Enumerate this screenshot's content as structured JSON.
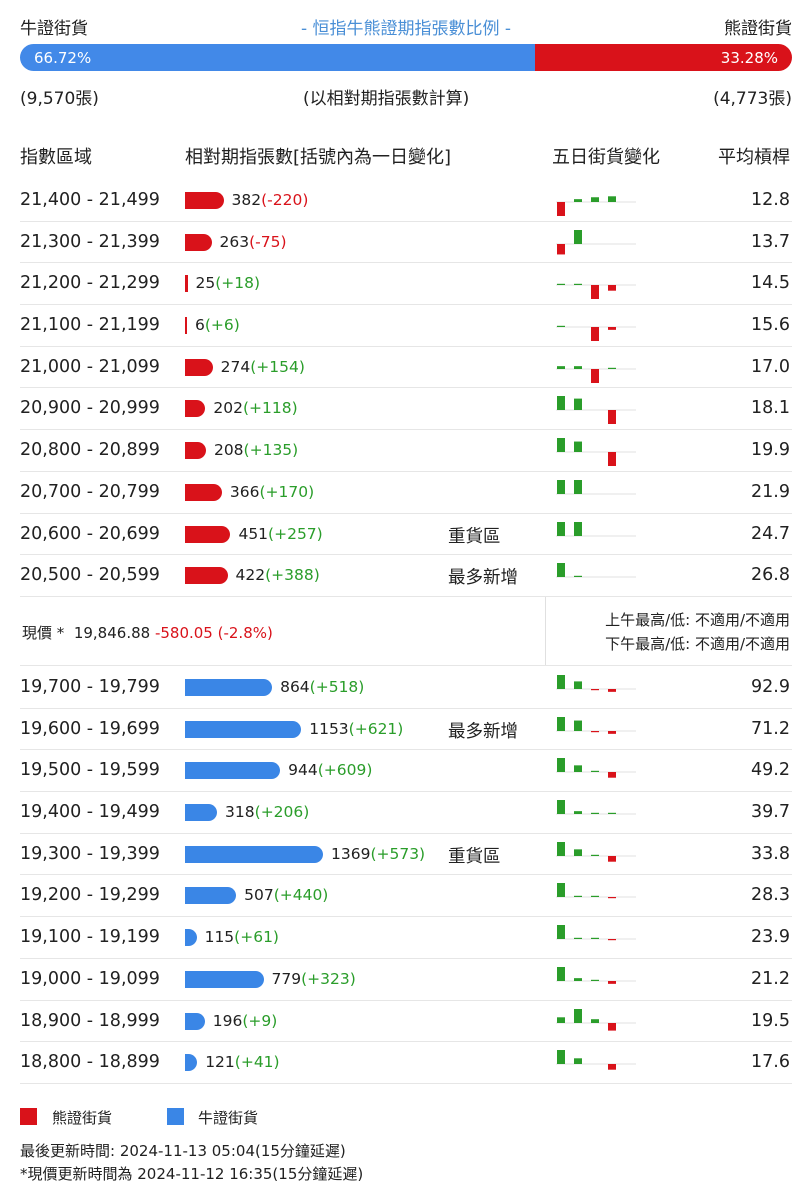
{
  "header": {
    "left_title": "牛證街貨",
    "center_title": "- 恒指牛熊證期指張數比例 -",
    "right_title": "熊證街貨"
  },
  "ratio": {
    "bull_pct_label": "66.72%",
    "bear_pct_label": "33.28%",
    "bull_fraction": 0.6672,
    "bull_color": "#4289e8",
    "bear_color": "#d9121a"
  },
  "counts": {
    "bull": "(9,570張)",
    "note": "(以相對期指張數計算)",
    "bear": "(4,773張)"
  },
  "columns": {
    "range": "指數區域",
    "contracts": "相對期指張數[括號內為一日變化]",
    "five_day": "五日街貨變化",
    "avg_ratio": "平均槓桿"
  },
  "bear_rows": [
    {
      "range": "21,400 - 21,499",
      "value": "382",
      "change": "(-220)",
      "sign": "neg",
      "tag": "",
      "avg": "12.8",
      "spark": [
        -2,
        0.3,
        0.5,
        0.6,
        0
      ]
    },
    {
      "range": "21,300 - 21,399",
      "value": "263",
      "change": "(-75)",
      "sign": "neg",
      "tag": "",
      "avg": "13.7",
      "spark": [
        -1.1,
        1.9,
        0,
        0,
        0
      ]
    },
    {
      "range": "21,200 - 21,299",
      "value": "25",
      "change": "(+18)",
      "sign": "pos",
      "tag": "",
      "avg": "14.5",
      "spark": [
        0.1,
        0.1,
        -1.9,
        -0.6,
        0
      ]
    },
    {
      "range": "21,100 - 21,199",
      "value": "6",
      "change": "(+6)",
      "sign": "pos",
      "tag": "",
      "avg": "15.6",
      "spark": [
        0.1,
        0,
        -1.8,
        -0.3,
        0
      ]
    },
    {
      "range": "21,000 - 21,099",
      "value": "274",
      "change": "(+154)",
      "sign": "pos",
      "tag": "",
      "avg": "17.0",
      "spark": [
        0.3,
        0.3,
        -1.8,
        0.1,
        0
      ]
    },
    {
      "range": "20,900 - 20,999",
      "value": "202",
      "change": "(+118)",
      "sign": "pos",
      "tag": "",
      "avg": "18.1",
      "spark": [
        1.9,
        1.2,
        0,
        -1.8,
        0
      ]
    },
    {
      "range": "20,800 - 20,899",
      "value": "208",
      "change": "(+135)",
      "sign": "pos",
      "tag": "",
      "avg": "19.9",
      "spark": [
        1.8,
        1.1,
        0,
        -1.8,
        0
      ]
    },
    {
      "range": "20,700 - 20,799",
      "value": "366",
      "change": "(+170)",
      "sign": "pos",
      "tag": "",
      "avg": "21.9",
      "spark": [
        2,
        2,
        0,
        0,
        0
      ]
    },
    {
      "range": "20,600 - 20,699",
      "value": "451",
      "change": "(+257)",
      "sign": "pos",
      "tag": "重貨區",
      "avg": "24.7",
      "spark": [
        1.9,
        1.6,
        0,
        0,
        0
      ]
    },
    {
      "range": "20,500 - 20,599",
      "value": "422",
      "change": "(+388)",
      "sign": "pos",
      "tag": "最多新增",
      "avg": "26.8",
      "spark": [
        2,
        0.1,
        0,
        0,
        0
      ]
    }
  ],
  "price": {
    "label": "現價 *",
    "value": "19,846.88",
    "change": "-580.05 (-2.8%)",
    "am": "上午最高/低: 不適用/不適用",
    "pm": "下午最高/低: 不適用/不適用"
  },
  "bull_rows": [
    {
      "range": "19,700 - 19,799",
      "value": "864",
      "change": "(+518)",
      "sign": "pos",
      "tag": "",
      "avg": "92.9",
      "spark": [
        2,
        0.8,
        -0.1,
        -0.3,
        0
      ]
    },
    {
      "range": "19,600 - 19,699",
      "value": "1153",
      "change": "(+621)",
      "sign": "pos",
      "tag": "最多新增",
      "avg": "71.2",
      "spark": [
        2,
        1.1,
        -0.1,
        -0.3,
        0
      ]
    },
    {
      "range": "19,500 - 19,599",
      "value": "944",
      "change": "(+609)",
      "sign": "pos",
      "tag": "",
      "avg": "49.2",
      "spark": [
        2,
        0.7,
        0.1,
        -0.6,
        0
      ]
    },
    {
      "range": "19,400 - 19,499",
      "value": "318",
      "change": "(+206)",
      "sign": "pos",
      "tag": "",
      "avg": "39.7",
      "spark": [
        2,
        0.3,
        0.1,
        0.1,
        0
      ]
    },
    {
      "range": "19,300 - 19,399",
      "value": "1369",
      "change": "(+573)",
      "sign": "pos",
      "tag": "重貨區",
      "avg": "33.8",
      "spark": [
        2,
        0.7,
        0.1,
        -0.6,
        0
      ]
    },
    {
      "range": "19,200 - 19,299",
      "value": "507",
      "change": "(+440)",
      "sign": "pos",
      "tag": "",
      "avg": "28.3",
      "spark": [
        2,
        0.1,
        0.1,
        -0.1,
        0
      ]
    },
    {
      "range": "19,100 - 19,199",
      "value": "115",
      "change": "(+61)",
      "sign": "pos",
      "tag": "",
      "avg": "23.9",
      "spark": [
        2,
        0.1,
        0.1,
        -0.1,
        0
      ]
    },
    {
      "range": "19,000 - 19,099",
      "value": "779",
      "change": "(+323)",
      "sign": "pos",
      "tag": "",
      "avg": "21.2",
      "spark": [
        2,
        0.3,
        0.1,
        -0.3,
        0
      ]
    },
    {
      "range": "18,900 - 18,999",
      "value": "196",
      "change": "(+9)",
      "sign": "pos",
      "tag": "",
      "avg": "19.5",
      "spark": [
        0.6,
        2,
        0.4,
        -0.8,
        0
      ]
    },
    {
      "range": "18,800 - 18,899",
      "value": "121",
      "change": "(+41)",
      "sign": "pos",
      "tag": "",
      "avg": "17.6",
      "spark": [
        2,
        0.6,
        0,
        -0.6,
        0
      ]
    }
  ],
  "legend": {
    "bear_label": "熊證街貨",
    "bull_label": "牛證街貨"
  },
  "footer": {
    "updated": "最後更新時間: 2024-11-13 05:04(15分鐘延遲)",
    "price_updated": "*現價更新時間為 2024-11-12 16:35(15分鐘延遲)"
  }
}
